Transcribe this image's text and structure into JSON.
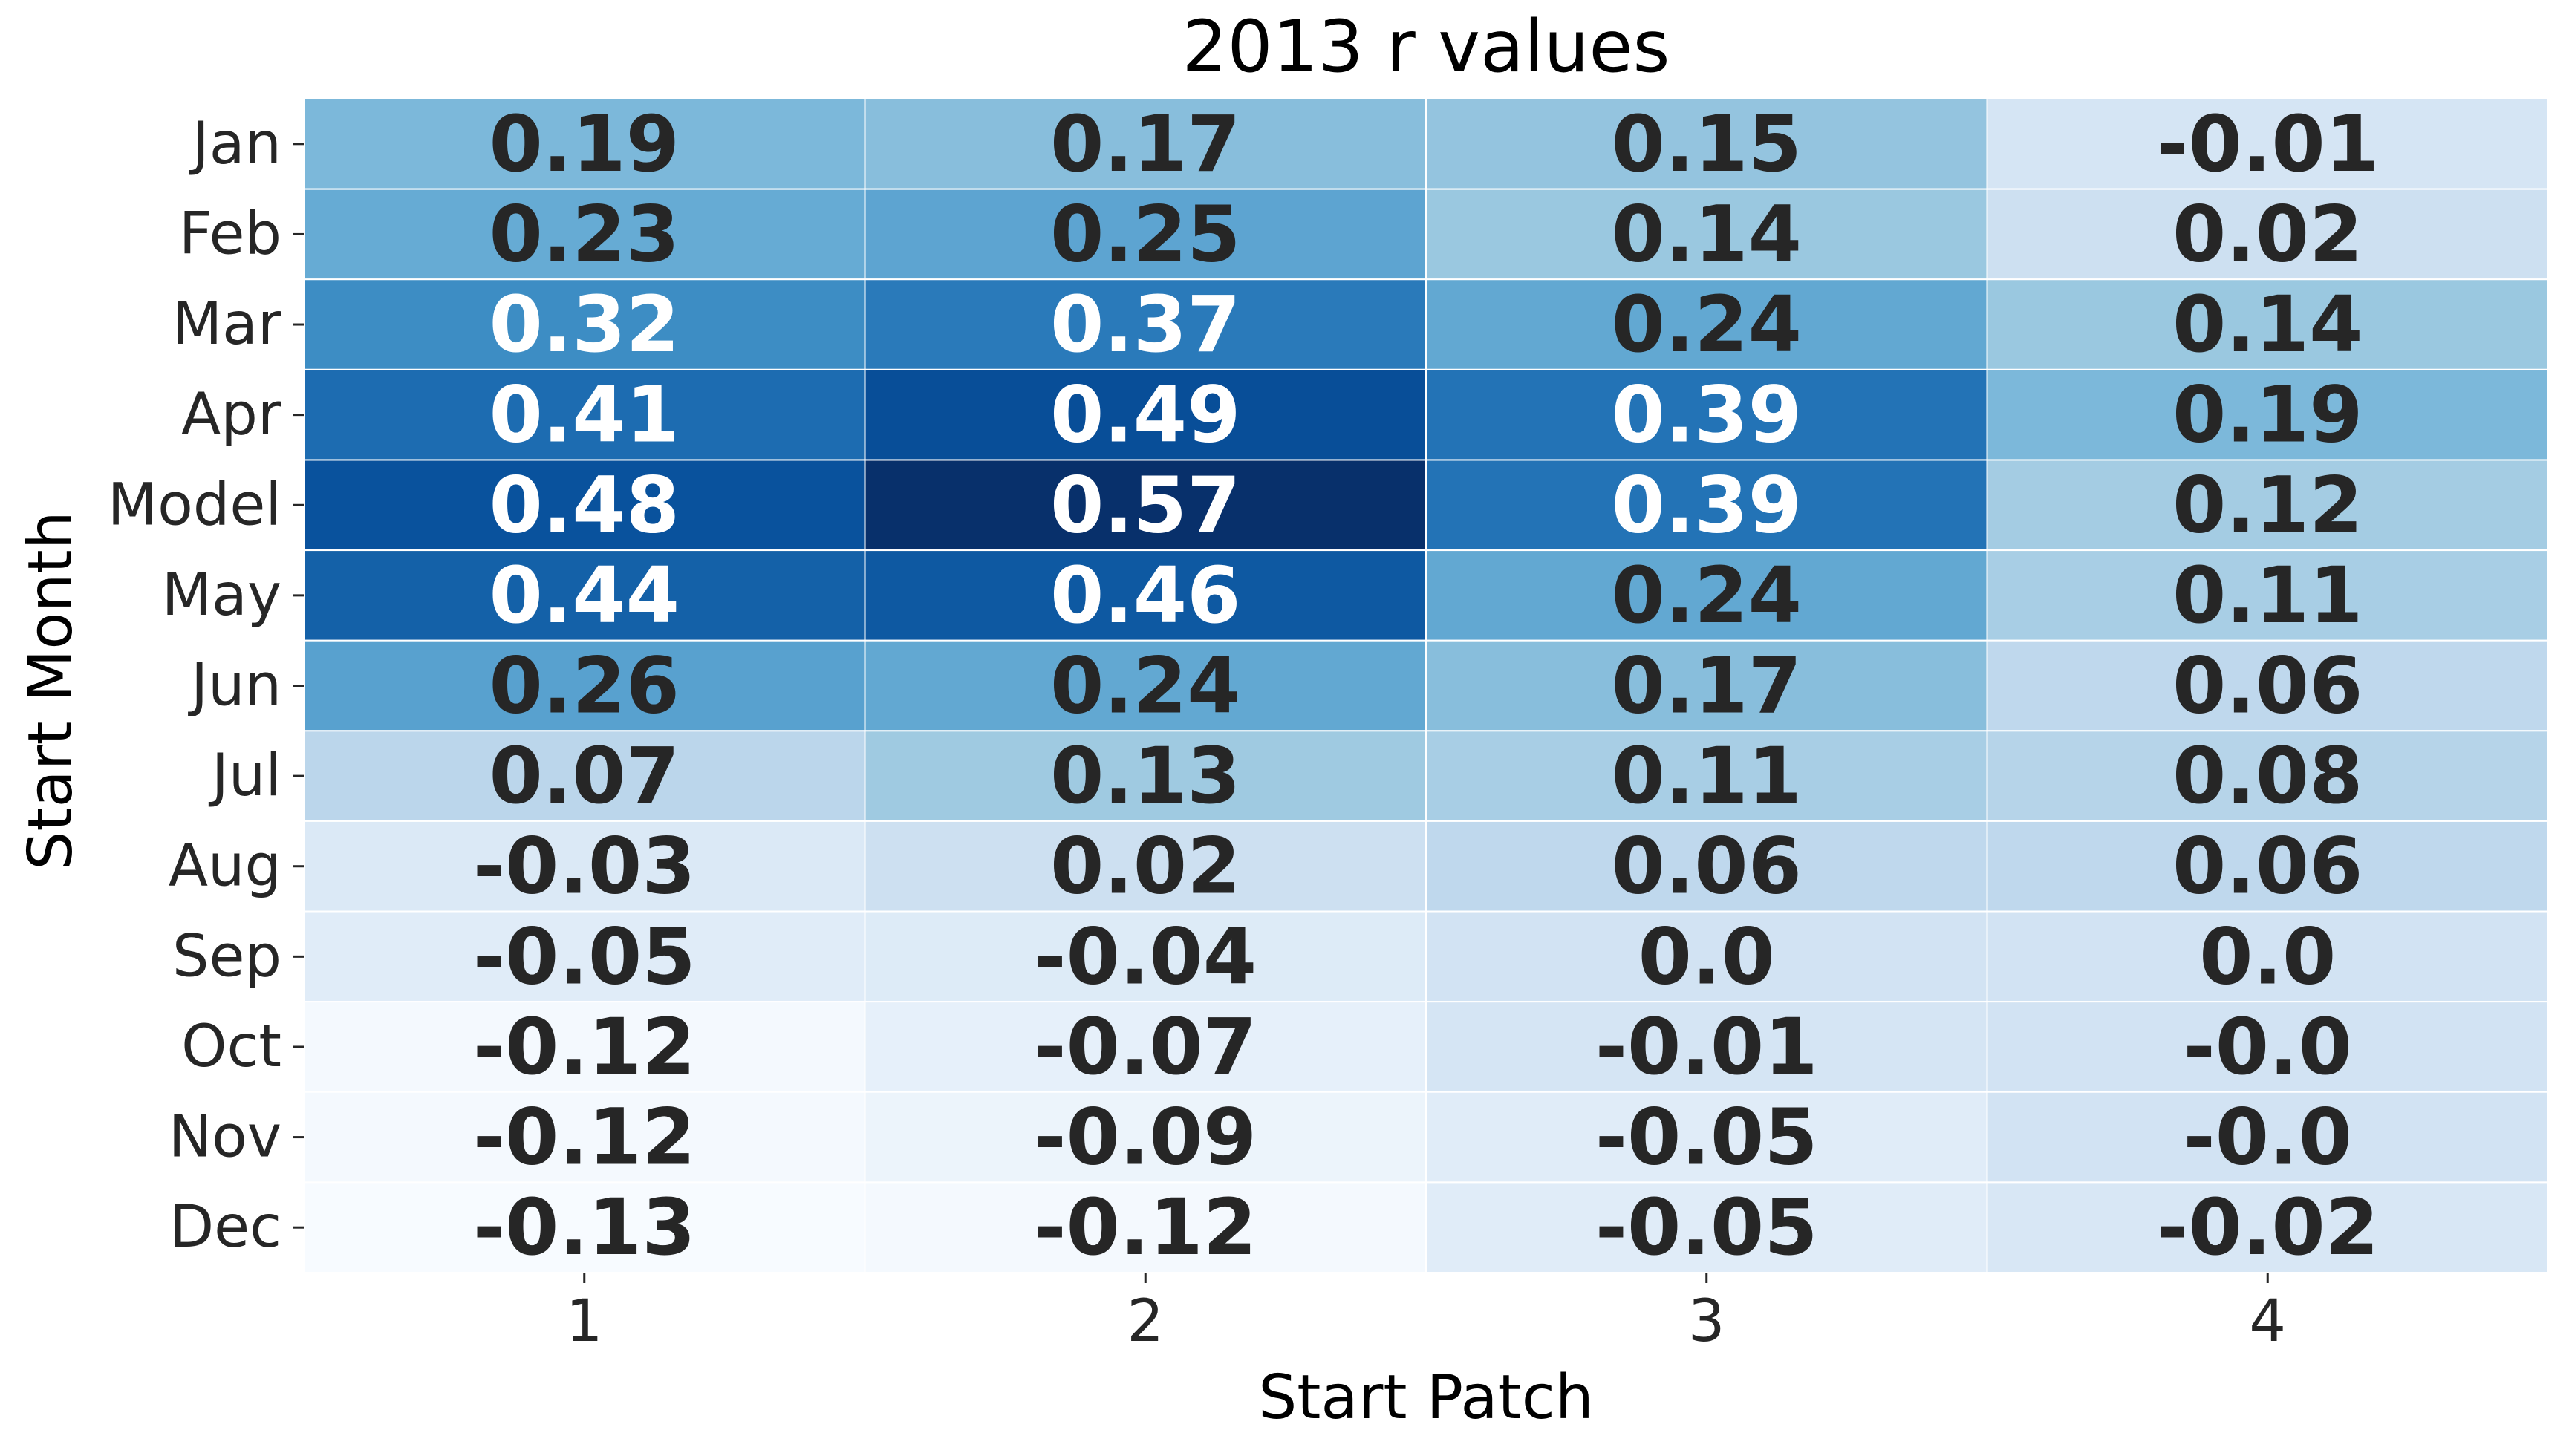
{
  "chart_data": {
    "type": "heatmap",
    "title": "2013 r values",
    "xlabel": "Start Patch",
    "ylabel": "Start Month",
    "x_categories": [
      "1",
      "2",
      "3",
      "4"
    ],
    "y_categories": [
      "Jan",
      "Feb",
      "Mar",
      "Apr",
      "Model",
      "May",
      "Jun",
      "Jul",
      "Aug",
      "Sep",
      "Oct",
      "Nov",
      "Dec"
    ],
    "values": [
      [
        0.19,
        0.17,
        0.15,
        -0.01
      ],
      [
        0.23,
        0.25,
        0.14,
        0.02
      ],
      [
        0.32,
        0.37,
        0.24,
        0.14
      ],
      [
        0.41,
        0.49,
        0.39,
        0.19
      ],
      [
        0.48,
        0.57,
        0.39,
        0.12
      ],
      [
        0.44,
        0.46,
        0.24,
        0.11
      ],
      [
        0.26,
        0.24,
        0.17,
        0.06
      ],
      [
        0.07,
        0.13,
        0.11,
        0.08
      ],
      [
        -0.03,
        0.02,
        0.06,
        0.06
      ],
      [
        -0.05,
        -0.04,
        0.0,
        0.0
      ],
      [
        -0.12,
        -0.07,
        -0.01,
        -0.0
      ],
      [
        -0.12,
        -0.09,
        -0.05,
        -0.0
      ],
      [
        -0.13,
        -0.12,
        -0.05,
        -0.02
      ]
    ],
    "cell_labels": [
      [
        "0.19",
        "0.17",
        "0.15",
        "-0.01"
      ],
      [
        "0.23",
        "0.25",
        "0.14",
        "0.02"
      ],
      [
        "0.32",
        "0.37",
        "0.24",
        "0.14"
      ],
      [
        "0.41",
        "0.49",
        "0.39",
        "0.19"
      ],
      [
        "0.48",
        "0.57",
        "0.39",
        "0.12"
      ],
      [
        "0.44",
        "0.46",
        "0.24",
        "0.11"
      ],
      [
        "0.26",
        "0.24",
        "0.17",
        "0.06"
      ],
      [
        "0.07",
        "0.13",
        "0.11",
        "0.08"
      ],
      [
        "-0.03",
        "0.02",
        "0.06",
        "0.06"
      ],
      [
        "-0.05",
        "-0.04",
        "0.0",
        "0.0"
      ],
      [
        "-0.12",
        "-0.07",
        "-0.01",
        "-0.0"
      ],
      [
        "-0.12",
        "-0.09",
        "-0.05",
        "-0.0"
      ],
      [
        "-0.13",
        "-0.12",
        "-0.05",
        "-0.02"
      ]
    ],
    "color_range": [
      -0.13,
      0.57
    ],
    "colormap": "Blues",
    "colorbar": false,
    "grid_lines": true,
    "grid_color": "#ffffff",
    "text_color_dark": "#262626",
    "text_color_light": "#ffffff"
  }
}
